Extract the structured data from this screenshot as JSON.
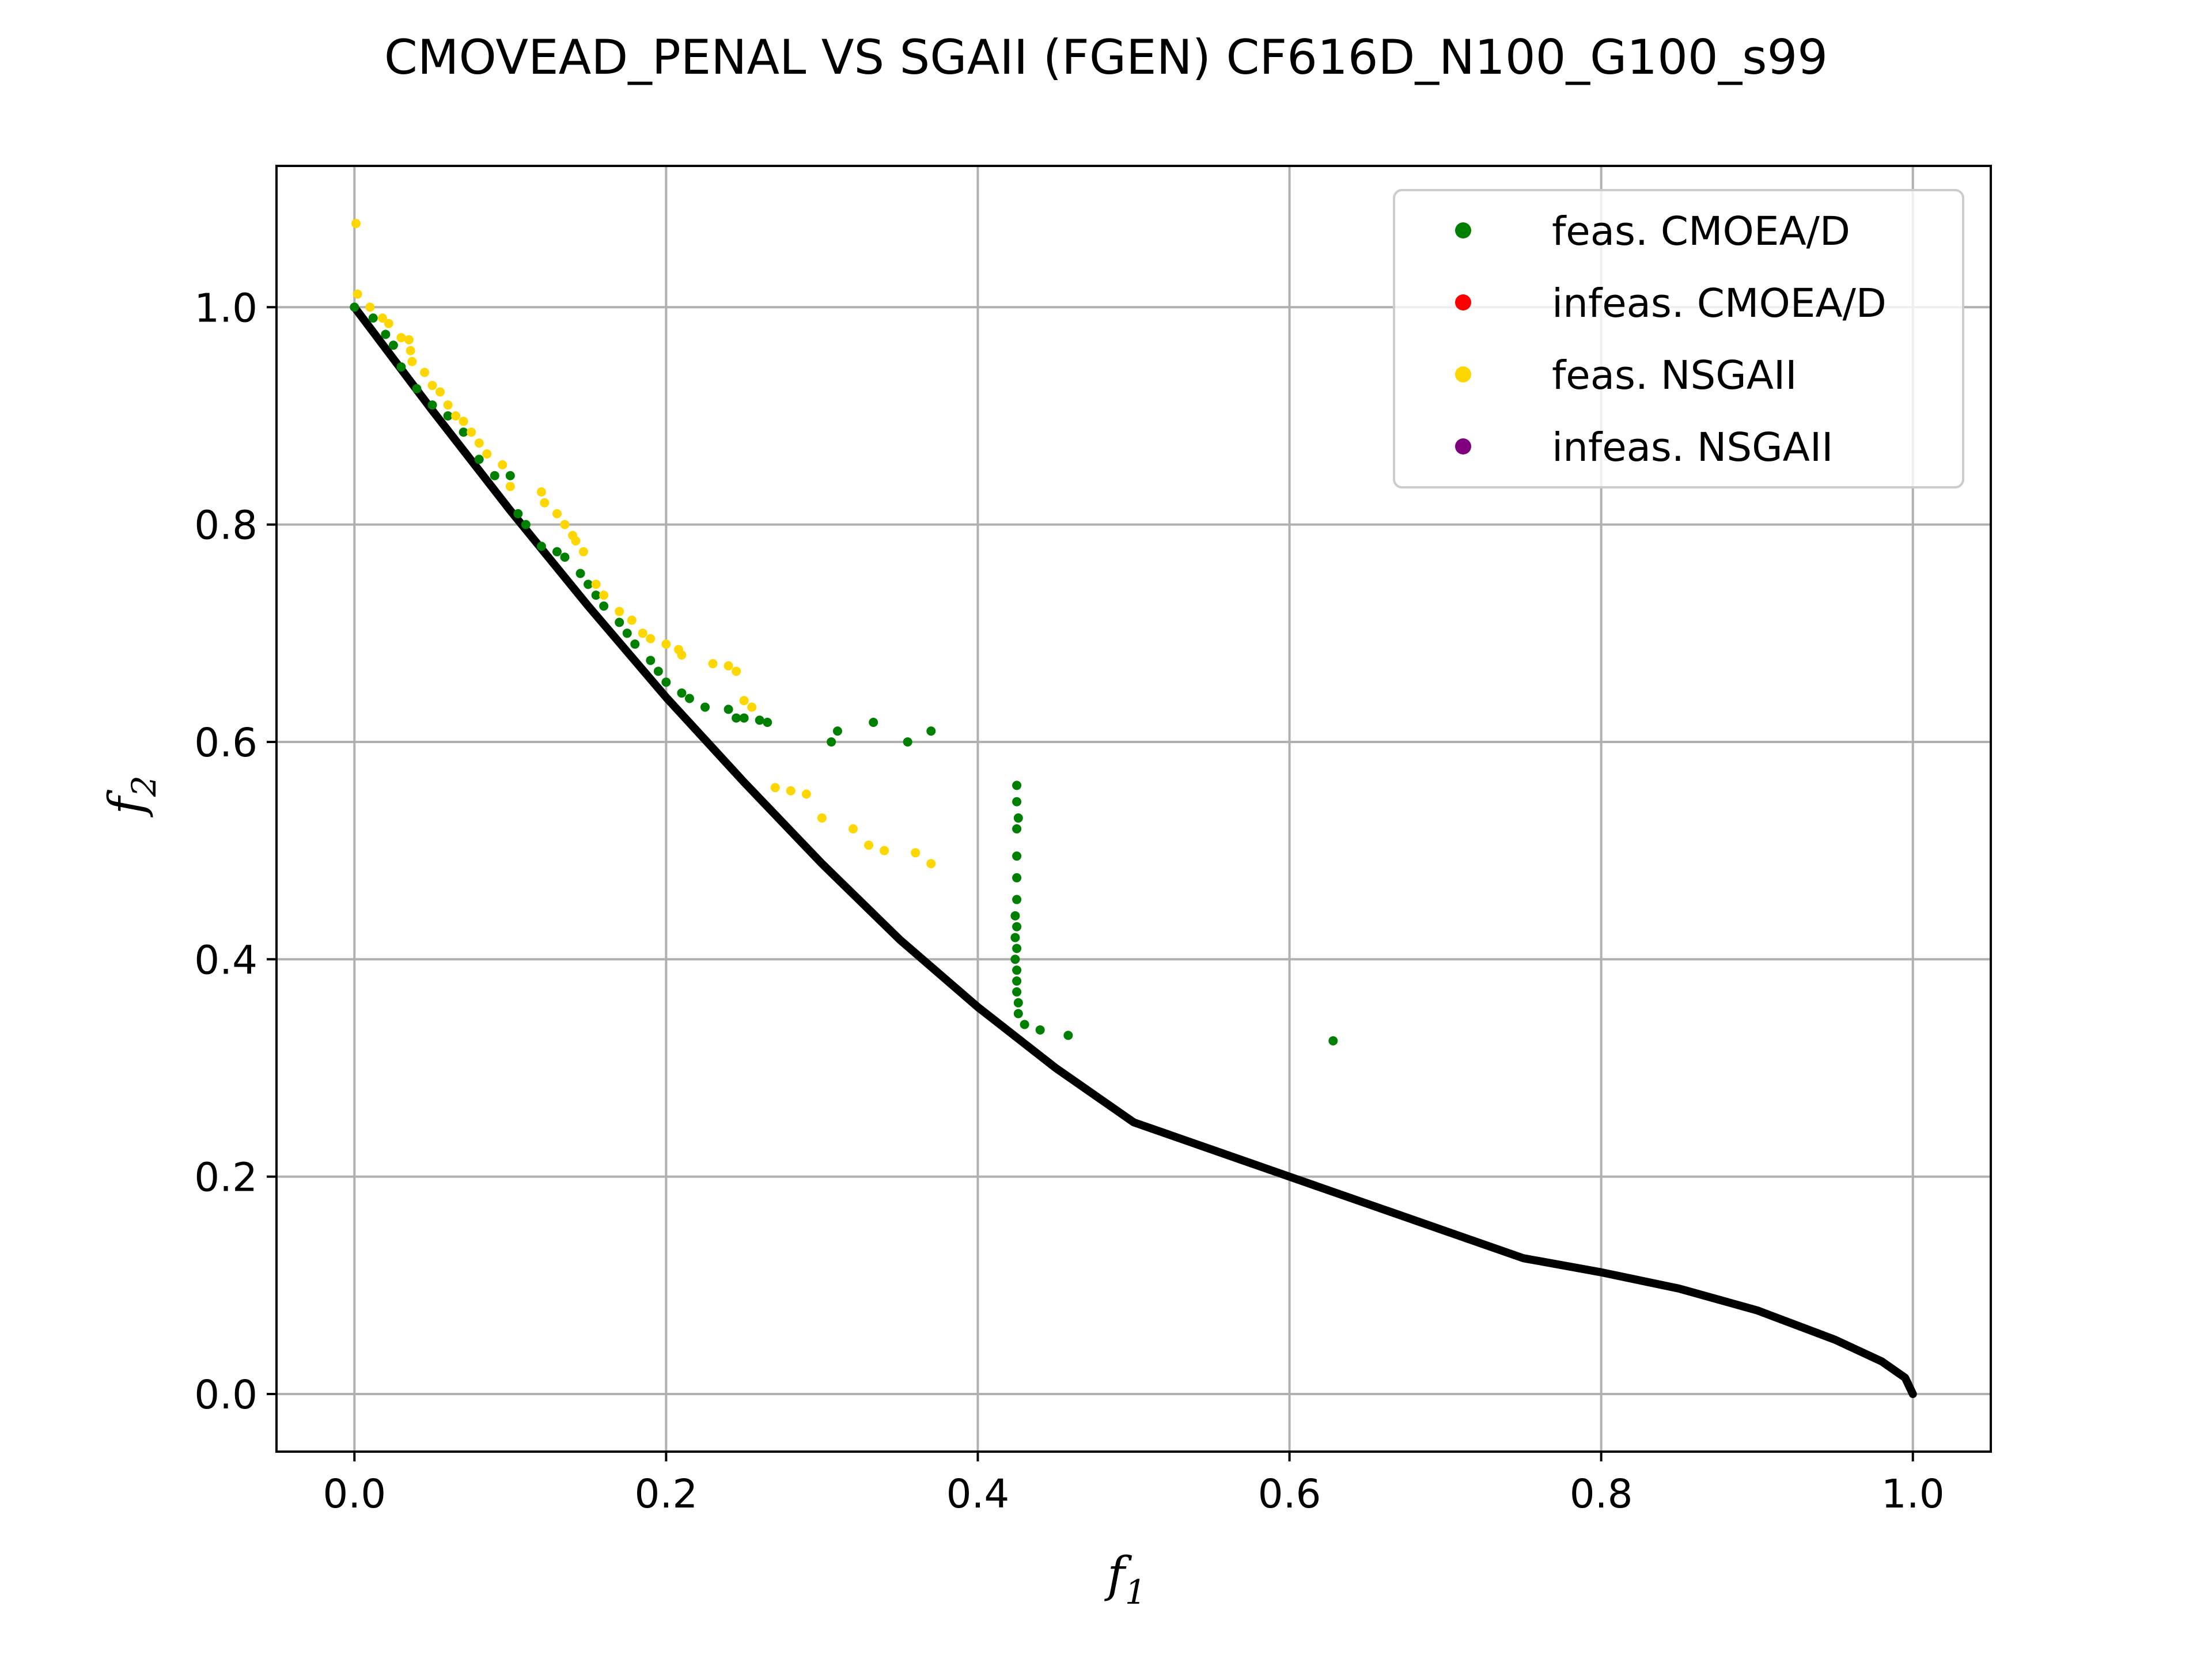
{
  "chart_data": {
    "type": "scatter",
    "title": "CMOVEAD_PENAL VS SGAII (FGEN) CF616D_N100_G100_s99",
    "xlabel": {
      "main": "f",
      "sub": "1"
    },
    "ylabel": {
      "main": "f",
      "sub": "2"
    },
    "xlim": [
      -0.05,
      1.05
    ],
    "ylim": [
      -0.053,
      1.13
    ],
    "xticks": [
      0.0,
      0.2,
      0.4,
      0.6,
      0.8,
      1.0
    ],
    "xtick_labels": [
      "0.0",
      "0.2",
      "0.4",
      "0.6",
      "0.8",
      "1.0"
    ],
    "yticks": [
      0.0,
      0.2,
      0.4,
      0.6,
      0.8,
      1.0
    ],
    "ytick_labels": [
      "0.0",
      "0.2",
      "0.4",
      "0.6",
      "0.8",
      "1.0"
    ],
    "grid": true,
    "legend_position": "top-right",
    "pareto_front": {
      "color": "#000000",
      "points": [
        [
          0.0,
          1.0
        ],
        [
          0.05,
          0.905
        ],
        [
          0.1,
          0.813
        ],
        [
          0.15,
          0.725
        ],
        [
          0.2,
          0.641
        ],
        [
          0.25,
          0.563
        ],
        [
          0.3,
          0.488
        ],
        [
          0.35,
          0.418
        ],
        [
          0.4,
          0.356
        ],
        [
          0.45,
          0.3
        ],
        [
          0.5,
          0.25
        ],
        [
          0.55,
          0.225
        ],
        [
          0.6,
          0.2
        ],
        [
          0.65,
          0.175
        ],
        [
          0.7,
          0.15
        ],
        [
          0.75,
          0.125
        ],
        [
          0.8,
          0.112
        ],
        [
          0.85,
          0.097
        ],
        [
          0.9,
          0.077
        ],
        [
          0.95,
          0.05
        ],
        [
          0.98,
          0.03
        ],
        [
          0.995,
          0.015
        ],
        [
          1.0,
          0.0
        ]
      ]
    },
    "series": [
      {
        "name": "feas. CMOEA/D",
        "color": "#008000",
        "points": [
          [
            0.0,
            1.0
          ],
          [
            0.012,
            0.99
          ],
          [
            0.02,
            0.975
          ],
          [
            0.025,
            0.965
          ],
          [
            0.03,
            0.945
          ],
          [
            0.04,
            0.925
          ],
          [
            0.05,
            0.91
          ],
          [
            0.06,
            0.9
          ],
          [
            0.07,
            0.885
          ],
          [
            0.08,
            0.86
          ],
          [
            0.09,
            0.845
          ],
          [
            0.1,
            0.845
          ],
          [
            0.105,
            0.81
          ],
          [
            0.11,
            0.8
          ],
          [
            0.12,
            0.78
          ],
          [
            0.13,
            0.775
          ],
          [
            0.135,
            0.77
          ],
          [
            0.145,
            0.755
          ],
          [
            0.15,
            0.745
          ],
          [
            0.155,
            0.735
          ],
          [
            0.16,
            0.725
          ],
          [
            0.17,
            0.71
          ],
          [
            0.175,
            0.7
          ],
          [
            0.18,
            0.69
          ],
          [
            0.19,
            0.675
          ],
          [
            0.195,
            0.665
          ],
          [
            0.2,
            0.655
          ],
          [
            0.21,
            0.645
          ],
          [
            0.215,
            0.64
          ],
          [
            0.225,
            0.632
          ],
          [
            0.24,
            0.63
          ],
          [
            0.245,
            0.622
          ],
          [
            0.25,
            0.622
          ],
          [
            0.26,
            0.62
          ],
          [
            0.265,
            0.618
          ],
          [
            0.306,
            0.6
          ],
          [
            0.31,
            0.61
          ],
          [
            0.333,
            0.618
          ],
          [
            0.355,
            0.6
          ],
          [
            0.37,
            0.61
          ],
          [
            0.425,
            0.56
          ],
          [
            0.425,
            0.545
          ],
          [
            0.426,
            0.53
          ],
          [
            0.425,
            0.52
          ],
          [
            0.425,
            0.495
          ],
          [
            0.425,
            0.475
          ],
          [
            0.425,
            0.455
          ],
          [
            0.424,
            0.44
          ],
          [
            0.425,
            0.43
          ],
          [
            0.424,
            0.42
          ],
          [
            0.425,
            0.41
          ],
          [
            0.424,
            0.4
          ],
          [
            0.425,
            0.39
          ],
          [
            0.425,
            0.38
          ],
          [
            0.425,
            0.37
          ],
          [
            0.426,
            0.36
          ],
          [
            0.426,
            0.35
          ],
          [
            0.43,
            0.34
          ],
          [
            0.44,
            0.335
          ],
          [
            0.458,
            0.33
          ],
          [
            0.628,
            0.325
          ]
        ]
      },
      {
        "name": "infeas. CMOEA/D",
        "color": "#ff0000",
        "points": []
      },
      {
        "name": "feas. NSGAII",
        "color": "#ffd700",
        "points": [
          [
            0.001,
            1.077
          ],
          [
            0.002,
            1.012
          ],
          [
            0.01,
            1.0
          ],
          [
            0.018,
            0.99
          ],
          [
            0.022,
            0.985
          ],
          [
            0.03,
            0.972
          ],
          [
            0.035,
            0.97
          ],
          [
            0.036,
            0.96
          ],
          [
            0.037,
            0.95
          ],
          [
            0.045,
            0.94
          ],
          [
            0.05,
            0.928
          ],
          [
            0.055,
            0.922
          ],
          [
            0.06,
            0.91
          ],
          [
            0.065,
            0.9
          ],
          [
            0.07,
            0.895
          ],
          [
            0.075,
            0.885
          ],
          [
            0.08,
            0.875
          ],
          [
            0.085,
            0.865
          ],
          [
            0.095,
            0.855
          ],
          [
            0.1,
            0.835
          ],
          [
            0.12,
            0.83
          ],
          [
            0.122,
            0.82
          ],
          [
            0.13,
            0.81
          ],
          [
            0.135,
            0.8
          ],
          [
            0.14,
            0.79
          ],
          [
            0.142,
            0.785
          ],
          [
            0.147,
            0.775
          ],
          [
            0.155,
            0.745
          ],
          [
            0.16,
            0.735
          ],
          [
            0.17,
            0.72
          ],
          [
            0.178,
            0.712
          ],
          [
            0.185,
            0.7
          ],
          [
            0.19,
            0.695
          ],
          [
            0.2,
            0.69
          ],
          [
            0.208,
            0.685
          ],
          [
            0.21,
            0.68
          ],
          [
            0.23,
            0.672
          ],
          [
            0.24,
            0.67
          ],
          [
            0.245,
            0.665
          ],
          [
            0.25,
            0.638
          ],
          [
            0.255,
            0.632
          ],
          [
            0.27,
            0.558
          ],
          [
            0.28,
            0.555
          ],
          [
            0.29,
            0.552
          ],
          [
            0.3,
            0.53
          ],
          [
            0.32,
            0.52
          ],
          [
            0.33,
            0.505
          ],
          [
            0.34,
            0.5
          ],
          [
            0.36,
            0.498
          ],
          [
            0.37,
            0.488
          ]
        ]
      },
      {
        "name": "infeas. NSGAII",
        "color": "#800080",
        "points": []
      }
    ]
  }
}
